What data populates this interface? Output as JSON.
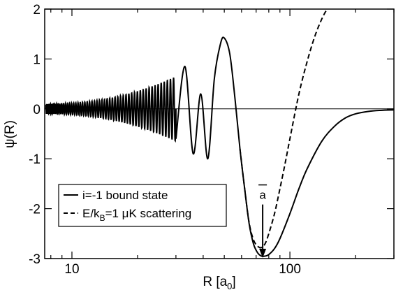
{
  "chart_data": {
    "type": "line",
    "title": "",
    "xlabel": "R [a",
    "xlabel_sub": "0",
    "xlabel_end": "]",
    "ylabel": "ψ(R)",
    "x_scale": "log",
    "xlim": [
      7.5,
      300
    ],
    "ylim": [
      -3,
      2
    ],
    "x_ticks": [
      10,
      100
    ],
    "x_tick_labels": [
      "10",
      "100"
    ],
    "y_ticks": [
      2,
      1,
      0,
      -1,
      -2,
      -3
    ],
    "y_tick_labels": [
      "2",
      "1",
      "0",
      "-1",
      "-2",
      "-3"
    ],
    "grid": false,
    "zero_line": true,
    "legend_position": "bottom-left",
    "series": [
      {
        "legend_main": "i=-1 bound state",
        "line_style": "solid",
        "color": "#000000",
        "x": [
          7.6,
          7.8,
          8.2,
          9,
          10,
          12,
          14,
          16,
          18,
          20,
          22,
          24,
          26,
          28,
          30,
          33,
          36,
          39,
          42,
          45,
          48,
          50,
          53,
          56,
          59,
          62,
          65,
          68,
          71,
          74,
          77,
          80,
          85,
          90,
          100,
          110,
          120,
          140,
          160,
          180,
          200,
          230,
          260,
          300
        ],
        "y": [
          0.15,
          -0.1,
          0.1,
          0.05,
          0.04,
          0.03,
          0.0,
          0.25,
          -0.15,
          0.35,
          -0.3,
          0.45,
          -0.45,
          0.6,
          -0.6,
          0.85,
          -0.9,
          0.3,
          -1.0,
          0.6,
          1.3,
          1.42,
          1.1,
          0.2,
          -0.8,
          -1.6,
          -2.3,
          -2.7,
          -2.88,
          -2.95,
          -2.95,
          -2.92,
          -2.8,
          -2.6,
          -2.1,
          -1.6,
          -1.2,
          -0.65,
          -0.35,
          -0.18,
          -0.1,
          -0.05,
          -0.03,
          -0.02
        ]
      },
      {
        "legend_main": "E/k",
        "legend_sub": "B",
        "legend_rest": "=1 μK scattering",
        "line_style": "dashed",
        "color": "#000000",
        "x": [
          59,
          62,
          65,
          68,
          71,
          74,
          77,
          80,
          85,
          90,
          95,
          100,
          110,
          120,
          130,
          140,
          148
        ],
        "y": [
          -0.8,
          -1.6,
          -2.28,
          -2.62,
          -2.75,
          -2.78,
          -2.7,
          -2.5,
          -2.1,
          -1.6,
          -1.1,
          -0.6,
          0.3,
          0.95,
          1.45,
          1.8,
          2.0
        ]
      }
    ],
    "annotations": [
      {
        "text": "a",
        "overline": true,
        "x": 75,
        "y_from": -2.0,
        "y_to": -3.0,
        "arrow": "down"
      }
    ]
  }
}
